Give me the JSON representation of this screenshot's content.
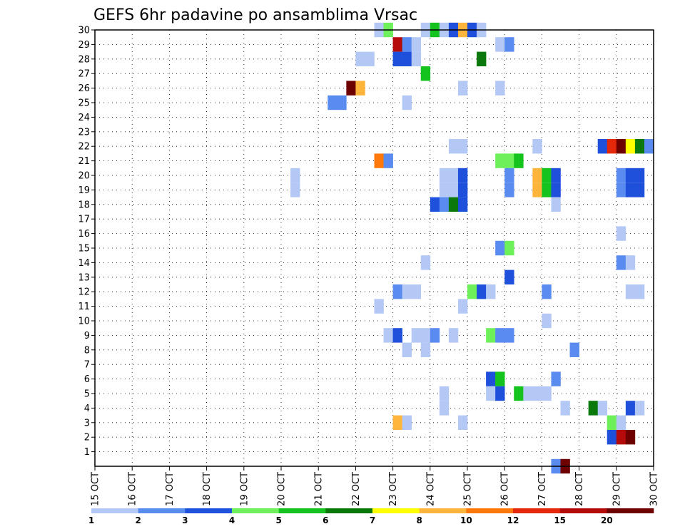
{
  "chart_data": {
    "type": "heatmap",
    "title": "GEFS 6hr padavine po ansamblima Vrsac",
    "x_tick_labels": [
      "15 OCT",
      "16 OCT",
      "17 OCT",
      "18 OCT",
      "19 OCT",
      "20 OCT",
      "21 OCT",
      "22 OCT",
      "23 OCT",
      "24 OCT",
      "25 OCT",
      "26 OCT",
      "27 OCT",
      "28 OCT",
      "29 OCT",
      "30 OCT"
    ],
    "y_tick_labels": [
      "1",
      "2",
      "3",
      "4",
      "5",
      "6",
      "7",
      "8",
      "9",
      "10",
      "11",
      "12",
      "13",
      "14",
      "15",
      "16",
      "17",
      "18",
      "19",
      "20",
      "21",
      "22",
      "23",
      "24",
      "25",
      "26",
      "27",
      "28",
      "29",
      "30"
    ],
    "xlim_days": [
      15,
      30
    ],
    "ylim": [
      0,
      30
    ],
    "grid": true,
    "colorbar": {
      "labels": [
        "1",
        "2",
        "3",
        "4",
        "5",
        "6",
        "7",
        "8",
        "10",
        "12",
        "15",
        "20"
      ],
      "colors": [
        "#b4c8f5",
        "#5a8cf0",
        "#1e50dc",
        "#6ef05a",
        "#14c31e",
        "#0a780a",
        "#ffff00",
        "#ffb43c",
        "#ff780a",
        "#e6280a",
        "#b40a0a",
        "#6e0000"
      ]
    },
    "cells": [
      {
        "member": 30,
        "day": 22.5,
        "level": 1
      },
      {
        "member": 30,
        "day": 22.75,
        "level": 4
      },
      {
        "member": 30,
        "day": 23.75,
        "level": 1
      },
      {
        "member": 30,
        "day": 24.0,
        "level": 5
      },
      {
        "member": 30,
        "day": 24.25,
        "level": 1
      },
      {
        "member": 30,
        "day": 24.5,
        "level": 3
      },
      {
        "member": 30,
        "day": 24.75,
        "level": 8
      },
      {
        "member": 30,
        "day": 25.0,
        "level": 3
      },
      {
        "member": 30,
        "day": 25.25,
        "level": 1
      },
      {
        "member": 29,
        "day": 23.0,
        "level": 11
      },
      {
        "member": 29,
        "day": 23.25,
        "level": 2
      },
      {
        "member": 29,
        "day": 23.5,
        "level": 1
      },
      {
        "member": 29,
        "day": 25.75,
        "level": 1
      },
      {
        "member": 29,
        "day": 26.0,
        "level": 2
      },
      {
        "member": 28,
        "day": 22.0,
        "level": 1
      },
      {
        "member": 28,
        "day": 22.25,
        "level": 1
      },
      {
        "member": 28,
        "day": 23.0,
        "level": 3
      },
      {
        "member": 28,
        "day": 23.25,
        "level": 3
      },
      {
        "member": 28,
        "day": 23.5,
        "level": 1
      },
      {
        "member": 28,
        "day": 25.25,
        "level": 6
      },
      {
        "member": 27,
        "day": 23.75,
        "level": 5
      },
      {
        "member": 26,
        "day": 21.75,
        "level": 12
      },
      {
        "member": 26,
        "day": 22.0,
        "level": 8
      },
      {
        "member": 26,
        "day": 24.75,
        "level": 1
      },
      {
        "member": 26,
        "day": 25.75,
        "level": 1
      },
      {
        "member": 25,
        "day": 21.25,
        "level": 2
      },
      {
        "member": 25,
        "day": 21.5,
        "level": 2
      },
      {
        "member": 25,
        "day": 23.25,
        "level": 1
      },
      {
        "member": 22,
        "day": 24.5,
        "level": 1
      },
      {
        "member": 22,
        "day": 24.75,
        "level": 1
      },
      {
        "member": 22,
        "day": 26.75,
        "level": 1
      },
      {
        "member": 22,
        "day": 28.5,
        "level": 3
      },
      {
        "member": 22,
        "day": 28.75,
        "level": 10
      },
      {
        "member": 22,
        "day": 29.0,
        "level": 12
      },
      {
        "member": 22,
        "day": 29.25,
        "level": 7
      },
      {
        "member": 22,
        "day": 29.5,
        "level": 6
      },
      {
        "member": 22,
        "day": 29.75,
        "level": 2
      },
      {
        "member": 21,
        "day": 22.5,
        "level": 9
      },
      {
        "member": 21,
        "day": 22.75,
        "level": 2
      },
      {
        "member": 21,
        "day": 25.75,
        "level": 4
      },
      {
        "member": 21,
        "day": 26.0,
        "level": 4
      },
      {
        "member": 21,
        "day": 26.25,
        "level": 5
      },
      {
        "member": 20,
        "day": 20.25,
        "level": 1
      },
      {
        "member": 20,
        "day": 24.25,
        "level": 1
      },
      {
        "member": 20,
        "day": 24.5,
        "level": 1
      },
      {
        "member": 20,
        "day": 24.75,
        "level": 3
      },
      {
        "member": 20,
        "day": 26.0,
        "level": 2
      },
      {
        "member": 20,
        "day": 26.75,
        "level": 8
      },
      {
        "member": 20,
        "day": 27.0,
        "level": 5
      },
      {
        "member": 20,
        "day": 27.25,
        "level": 3
      },
      {
        "member": 20,
        "day": 29.0,
        "level": 2
      },
      {
        "member": 20,
        "day": 29.25,
        "level": 3
      },
      {
        "member": 20,
        "day": 29.5,
        "level": 3
      },
      {
        "member": 19,
        "day": 20.25,
        "level": 1
      },
      {
        "member": 19,
        "day": 24.25,
        "level": 1
      },
      {
        "member": 19,
        "day": 24.5,
        "level": 1
      },
      {
        "member": 19,
        "day": 24.75,
        "level": 3
      },
      {
        "member": 19,
        "day": 26.0,
        "level": 2
      },
      {
        "member": 19,
        "day": 26.75,
        "level": 8
      },
      {
        "member": 19,
        "day": 27.0,
        "level": 5
      },
      {
        "member": 19,
        "day": 27.25,
        "level": 3
      },
      {
        "member": 19,
        "day": 29.0,
        "level": 2
      },
      {
        "member": 19,
        "day": 29.25,
        "level": 3
      },
      {
        "member": 19,
        "day": 29.5,
        "level": 3
      },
      {
        "member": 18,
        "day": 24.0,
        "level": 3
      },
      {
        "member": 18,
        "day": 24.25,
        "level": 2
      },
      {
        "member": 18,
        "day": 24.5,
        "level": 6
      },
      {
        "member": 18,
        "day": 24.75,
        "level": 3
      },
      {
        "member": 18,
        "day": 27.25,
        "level": 1
      },
      {
        "member": 16,
        "day": 29.0,
        "level": 1
      },
      {
        "member": 15,
        "day": 25.75,
        "level": 2
      },
      {
        "member": 15,
        "day": 26.0,
        "level": 4
      },
      {
        "member": 14,
        "day": 23.75,
        "level": 1
      },
      {
        "member": 14,
        "day": 29.0,
        "level": 2
      },
      {
        "member": 14,
        "day": 29.25,
        "level": 1
      },
      {
        "member": 13,
        "day": 26.0,
        "level": 3
      },
      {
        "member": 12,
        "day": 23.0,
        "level": 2
      },
      {
        "member": 12,
        "day": 23.25,
        "level": 1
      },
      {
        "member": 12,
        "day": 23.5,
        "level": 1
      },
      {
        "member": 12,
        "day": 25.0,
        "level": 4
      },
      {
        "member": 12,
        "day": 25.25,
        "level": 3
      },
      {
        "member": 12,
        "day": 25.5,
        "level": 1
      },
      {
        "member": 12,
        "day": 27.0,
        "level": 2
      },
      {
        "member": 12,
        "day": 29.25,
        "level": 1
      },
      {
        "member": 12,
        "day": 29.5,
        "level": 1
      },
      {
        "member": 11,
        "day": 22.5,
        "level": 1
      },
      {
        "member": 11,
        "day": 24.75,
        "level": 1
      },
      {
        "member": 10,
        "day": 27.0,
        "level": 1
      },
      {
        "member": 9,
        "day": 22.75,
        "level": 1
      },
      {
        "member": 9,
        "day": 23.0,
        "level": 3
      },
      {
        "member": 9,
        "day": 23.5,
        "level": 1
      },
      {
        "member": 9,
        "day": 23.75,
        "level": 1
      },
      {
        "member": 9,
        "day": 24.0,
        "level": 2
      },
      {
        "member": 9,
        "day": 24.5,
        "level": 1
      },
      {
        "member": 9,
        "day": 25.5,
        "level": 4
      },
      {
        "member": 9,
        "day": 25.75,
        "level": 2
      },
      {
        "member": 9,
        "day": 26.0,
        "level": 2
      },
      {
        "member": 8,
        "day": 23.25,
        "level": 1
      },
      {
        "member": 8,
        "day": 23.75,
        "level": 1
      },
      {
        "member": 8,
        "day": 27.75,
        "level": 2
      },
      {
        "member": 6,
        "day": 25.5,
        "level": 3
      },
      {
        "member": 6,
        "day": 25.75,
        "level": 5
      },
      {
        "member": 6,
        "day": 27.25,
        "level": 2
      },
      {
        "member": 5,
        "day": 24.25,
        "level": 1
      },
      {
        "member": 5,
        "day": 25.5,
        "level": 1
      },
      {
        "member": 5,
        "day": 25.75,
        "level": 3
      },
      {
        "member": 5,
        "day": 26.25,
        "level": 5
      },
      {
        "member": 5,
        "day": 26.5,
        "level": 1
      },
      {
        "member": 5,
        "day": 26.75,
        "level": 1
      },
      {
        "member": 5,
        "day": 27.0,
        "level": 1
      },
      {
        "member": 4,
        "day": 24.25,
        "level": 1
      },
      {
        "member": 4,
        "day": 27.5,
        "level": 1
      },
      {
        "member": 4,
        "day": 28.25,
        "level": 6
      },
      {
        "member": 4,
        "day": 28.5,
        "level": 1
      },
      {
        "member": 4,
        "day": 29.25,
        "level": 3
      },
      {
        "member": 4,
        "day": 29.5,
        "level": 1
      },
      {
        "member": 3,
        "day": 23.0,
        "level": 8
      },
      {
        "member": 3,
        "day": 23.25,
        "level": 1
      },
      {
        "member": 3,
        "day": 24.75,
        "level": 1
      },
      {
        "member": 3,
        "day": 28.75,
        "level": 4
      },
      {
        "member": 3,
        "day": 29.0,
        "level": 1
      },
      {
        "member": 2,
        "day": 28.75,
        "level": 3
      },
      {
        "member": 2,
        "day": 29.0,
        "level": 11
      },
      {
        "member": 2,
        "day": 29.25,
        "level": 12
      },
      {
        "member": 0,
        "day": 27.25,
        "level": 2
      },
      {
        "member": 0,
        "day": 27.5,
        "level": 12
      }
    ]
  }
}
